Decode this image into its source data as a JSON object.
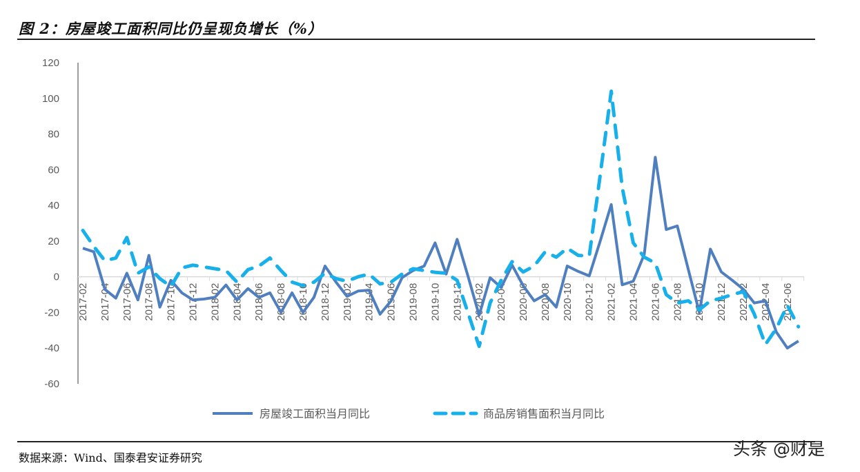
{
  "title": "图 2：房屋竣工面积同比仍呈现负增长（%）",
  "source": "数据来源：Wind、国泰君安证券研究",
  "watermark": "头条 @财是",
  "chart_data": {
    "type": "line",
    "title": "图 2：房屋竣工面积同比仍呈现负增长（%）",
    "xlabel": "",
    "ylabel": "",
    "ylim": [
      -60,
      120
    ],
    "yticks": [
      120,
      100,
      80,
      60,
      40,
      20,
      0,
      -20,
      -40,
      -60
    ],
    "grid": false,
    "legend": "bottom",
    "x": [
      "2017-02",
      "2017-03",
      "2017-04",
      "2017-05",
      "2017-06",
      "2017-07",
      "2017-08",
      "2017-09",
      "2017-10",
      "2017-11",
      "2017-12",
      "2018-01",
      "2018-02",
      "2018-03",
      "2018-04",
      "2018-05",
      "2018-06",
      "2018-07",
      "2018-08",
      "2018-09",
      "2018-10",
      "2018-11",
      "2018-12",
      "2019-01",
      "2019-02",
      "2019-03",
      "2019-04",
      "2019-05",
      "2019-06",
      "2019-07",
      "2019-08",
      "2019-09",
      "2019-10",
      "2019-11",
      "2019-12",
      "2020-01",
      "2020-02",
      "2020-03",
      "2020-04",
      "2020-05",
      "2020-06",
      "2020-07",
      "2020-08",
      "2020-09",
      "2020-10",
      "2020-11",
      "2020-12",
      "2021-01",
      "2021-02",
      "2021-03",
      "2021-04",
      "2021-05",
      "2021-06",
      "2021-07",
      "2021-08",
      "2021-09",
      "2021-10",
      "2021-11",
      "2021-12",
      "2022-01",
      "2022-02",
      "2022-03",
      "2022-04",
      "2022-05",
      "2022-06",
      "2022-07"
    ],
    "xtick_labels": [
      "2017-02",
      "2017-04",
      "2017-06",
      "2017-08",
      "2017-10",
      "2017-12",
      "2018-02",
      "2018-04",
      "2018-06",
      "2018-08",
      "2018-10",
      "2018-12",
      "2019-02",
      "2019-04",
      "2019-06",
      "2019-08",
      "2019-10",
      "2019-12",
      "2020-02",
      "2020-04",
      "2020-06",
      "2020-08",
      "2020-10",
      "2020-12",
      "2021-02",
      "2021-04",
      "2021-06",
      "2021-08",
      "2021-10",
      "2021-12",
      "2022-02",
      "2022-04",
      "2022-06"
    ],
    "series": [
      {
        "name": "房屋竣工面积当月同比",
        "style": "solid",
        "color": "#4f7fbf",
        "values": [
          16,
          14,
          -7,
          -12,
          2,
          -13,
          12,
          -17,
          -2,
          -9,
          -13,
          -12.5,
          -11.5,
          -4.6,
          -13,
          -6.6,
          -11.6,
          -9,
          -20,
          -9,
          -20,
          -11.5,
          6,
          -3,
          -11,
          -8,
          -7.5,
          -21,
          -13.5,
          -0.5,
          3.5,
          6,
          19,
          1.5,
          21,
          0,
          -21.6,
          -0.5,
          -6,
          6.5,
          -5,
          -13.5,
          -10,
          -17,
          6,
          3,
          0.5,
          20,
          40.5,
          -4.5,
          -2.5,
          12.5,
          67,
          26.5,
          28.5,
          4,
          -20,
          15.5,
          2.7,
          -2,
          -7,
          -14.7,
          -13.5,
          -31,
          -40,
          -36
        ]
      },
      {
        "name": "商品房销售面积当月同比",
        "style": "dashed",
        "color": "#17b0ea",
        "values": [
          26,
          17,
          9,
          10.5,
          22,
          2,
          5.5,
          -1,
          -5.5,
          5,
          6.5,
          5.5,
          4.5,
          3.5,
          -3,
          4,
          6,
          10.5,
          3.5,
          -3,
          -5,
          -3,
          2,
          -1,
          -2.5,
          0,
          1.5,
          -4,
          -3,
          1.5,
          4.5,
          3.5,
          2.5,
          2,
          -2,
          -20.5,
          -39,
          -14.7,
          -2,
          8.5,
          2.7,
          6,
          14,
          11,
          16,
          12,
          11.6,
          57,
          104,
          50,
          19,
          11,
          7.7,
          -10,
          -14.7,
          -13.5,
          -18.5,
          -13.5,
          -12,
          -10,
          -8.3,
          -21,
          -38,
          -29,
          -16,
          -28
        ]
      }
    ]
  }
}
